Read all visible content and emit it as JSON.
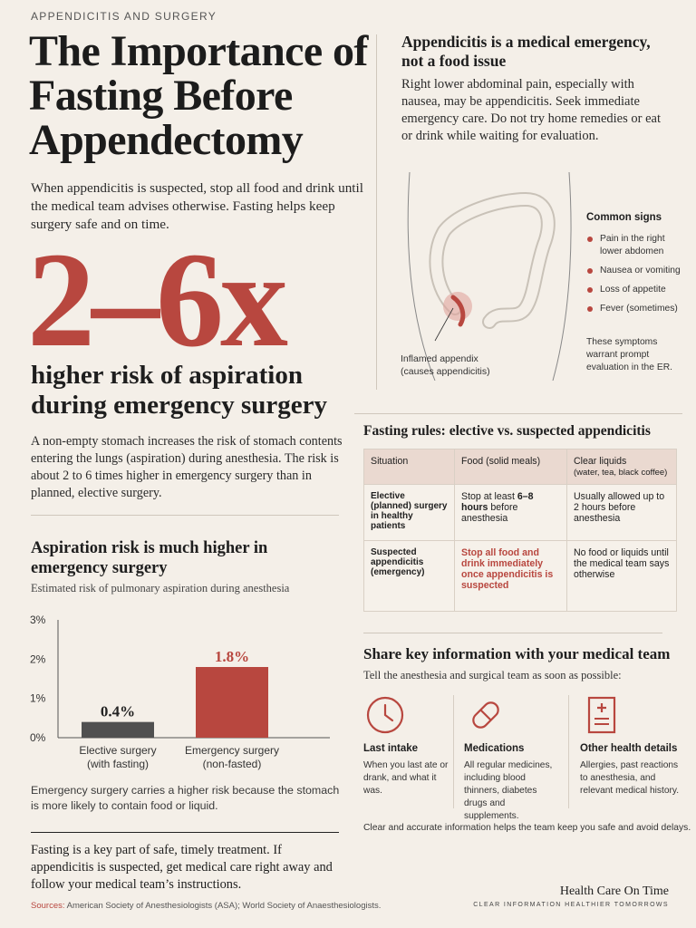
{
  "kicker": "APPENDICITIS AND SURGERY",
  "title": "The Importance of Fasting Before Appendectomy",
  "intro": "When appendicitis is suspected, stop all food and drink until the medical team advises otherwise. Fasting helps keep surgery safe and on time.",
  "big_stat": "2–6x",
  "risk_headline": "higher risk of aspiration during emergency surgery",
  "risk_body": "A non-empty stomach increases the risk of stomach contents entering the lungs (aspiration) during anesthesia. The risk is about 2 to 6 times higher in emergency surgery than in planned, elective surgery.",
  "chart_section": {
    "title": "Aspiration risk is much higher in emergency surgery",
    "subtitle": "Estimated risk of pulmonary aspiration during anesthesia",
    "note": "Emergency surgery carries a higher risk because the stomach is more likely to contain food or liquid."
  },
  "chart_data": {
    "type": "bar",
    "categories": [
      "Elective surgery\n(with fasting)",
      "Emergency surgery\n(non-fasted)"
    ],
    "values": [
      0.4,
      1.8
    ],
    "value_labels": [
      "0.4%",
      "1.8%"
    ],
    "ylim": [
      0,
      3
    ],
    "yticks": [
      "0%",
      "1%",
      "2%",
      "3%"
    ],
    "bar_colors": [
      "#505050",
      "#b8473f"
    ],
    "grid": false
  },
  "closing": "Fasting is a key part of safe, timely treatment. If appendicitis is suspected, get medical care right away and follow your medical team’s instructions.",
  "sources": {
    "label": "Sources:",
    "text": "American Society of Anesthesiologists (ASA); World Society of Anaesthesiologists."
  },
  "emergency": {
    "title": "Appendicitis is a medical emergency, not a food issue",
    "body": "Right lower abdominal pain, especially with nausea, may be appendicitis. Seek immediate emergency care. Do not try home remedies or eat or drink while waiting for evaluation."
  },
  "anatomy_label": "Inflamed appendix (causes appendicitis)",
  "signs": {
    "title": "Common signs",
    "items": [
      "Pain in the right lower abdomen",
      "Nausea or vomiting",
      "Loss of appetite",
      "Fever (sometimes)"
    ],
    "note": "These symptoms warrant prompt evaluation in the ER."
  },
  "fasting": {
    "title": "Fasting rules: elective vs. suspected appendicitis",
    "headers": [
      "Situation",
      "Food (solid meals)",
      "Clear liquids",
      "(water, tea, black coffee)"
    ],
    "rows": [
      {
        "situation": "Elective (planned) surgery in healthy patients",
        "food_pre": "Stop at least ",
        "food_strong": "6–8 hours",
        "food_post": " before anesthesia",
        "liquids": "Usually allowed up to 2 hours before anesthesia"
      },
      {
        "situation": "Suspected appendicitis (emergency)",
        "food": "Stop all food and drink immediately once appendicitis is suspected",
        "liquids": "No food or liquids until the medical team says otherwise"
      }
    ]
  },
  "share": {
    "title": "Share key information with your medical team",
    "subtitle": "Tell the anesthesia and surgical team as soon as possible:",
    "cards": [
      {
        "icon": "clock-icon",
        "title": "Last intake",
        "body": "When you last ate or drank, and what it was."
      },
      {
        "icon": "pill-icon",
        "title": "Medications",
        "body": "All regular medicines, including blood thinners, diabetes drugs and supplements."
      },
      {
        "icon": "medical-record-icon",
        "title": "Other health details",
        "body": "Allergies, past reactions to anesthesia, and relevant medical history."
      }
    ],
    "note": "Clear and accurate information helps the team keep you safe and avoid delays."
  },
  "brand": {
    "name": "Health Care On Time",
    "tagline": "CLEAR INFORMATION  HEALTHIER TOMORROWS"
  },
  "colors": {
    "accent": "#b8473f",
    "background": "#f4efe8",
    "elective_bar": "#505050"
  }
}
